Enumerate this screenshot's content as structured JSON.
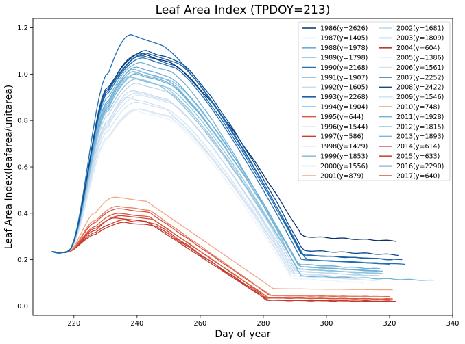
{
  "chart_data": {
    "type": "line",
    "title": "Leaf Area Index (TPDOY=213)",
    "xlabel": "Day of year",
    "ylabel": "Leaf Area Index(leafarea/unitarea)",
    "xlim": [
      207,
      340
    ],
    "ylim": [
      -0.04,
      1.24
    ],
    "xticks": [
      220,
      240,
      260,
      280,
      300,
      320,
      340
    ],
    "yticks": [
      0.0,
      0.2,
      0.4,
      0.6,
      0.8,
      1.0,
      1.2
    ],
    "ytick_labels": [
      "0.0",
      "0.2",
      "0.4",
      "0.6",
      "0.8",
      "1.0",
      "1.2"
    ],
    "legend_position": "top-right",
    "legend_columns": 2,
    "series": [
      {
        "name": "1986(y=2626)",
        "color": "#08306b",
        "peak": 1.09,
        "peak_day": 241,
        "end_day": 322,
        "end_value": 0.28
      },
      {
        "name": "1987(y=1405)",
        "color": "#deebf7",
        "peak": 0.85,
        "peak_day": 240,
        "end_day": 313,
        "end_value": 0.12
      },
      {
        "name": "1988(y=1978)",
        "color": "#6baed6",
        "peak": 1.03,
        "peak_day": 240,
        "end_day": 316,
        "end_value": 0.15
      },
      {
        "name": "1989(y=1798)",
        "color": "#9ecae1",
        "peak": 0.99,
        "peak_day": 238,
        "end_day": 314,
        "end_value": 0.14
      },
      {
        "name": "1990(y=2168)",
        "color": "#2171b5",
        "peak": 1.07,
        "peak_day": 242,
        "end_day": 320,
        "end_value": 0.18
      },
      {
        "name": "1991(y=1907)",
        "color": "#74b3d8",
        "peak": 1.01,
        "peak_day": 239,
        "end_day": 316,
        "end_value": 0.16
      },
      {
        "name": "1992(y=1605)",
        "color": "#c6dbef",
        "peak": 0.93,
        "peak_day": 239,
        "end_day": 314,
        "end_value": 0.13
      },
      {
        "name": "1993(y=2268)",
        "color": "#1c5fa8",
        "peak": 1.09,
        "peak_day": 243,
        "end_day": 324,
        "end_value": 0.2
      },
      {
        "name": "1994(y=1904)",
        "color": "#6aaed6",
        "peak": 1.0,
        "peak_day": 240,
        "end_day": 317,
        "end_value": 0.16
      },
      {
        "name": "1995(y=644)",
        "color": "#d9573e",
        "peak": 0.4,
        "peak_day": 234,
        "end_day": 320,
        "end_value": 0.03
      },
      {
        "name": "1996(y=1544)",
        "color": "#d6e6f4",
        "peak": 0.91,
        "peak_day": 241,
        "end_day": 316,
        "end_value": 0.11
      },
      {
        "name": "1997(y=586)",
        "color": "#cb3a2a",
        "peak": 0.37,
        "peak_day": 236,
        "end_day": 322,
        "end_value": 0.02
      },
      {
        "name": "1998(y=1429)",
        "color": "#dae8f5",
        "peak": 0.85,
        "peak_day": 241,
        "end_day": 315,
        "end_value": 0.11
      },
      {
        "name": "1999(y=1853)",
        "color": "#8dc1dd",
        "peak": 0.99,
        "peak_day": 237,
        "end_day": 318,
        "end_value": 0.14
      },
      {
        "name": "2000(y=1556)",
        "color": "#d0e1f2",
        "peak": 0.9,
        "peak_day": 237,
        "end_day": 315,
        "end_value": 0.12
      },
      {
        "name": "2001(y=879)",
        "color": "#f4a582",
        "peak": 0.47,
        "peak_day": 233,
        "end_day": 321,
        "end_value": 0.07
      },
      {
        "name": "2002(y=1681)",
        "color": "#bad6eb",
        "peak": 0.96,
        "peak_day": 240,
        "end_day": 317,
        "end_value": 0.13
      },
      {
        "name": "2003(y=1809)",
        "color": "#94c4df",
        "peak": 1.01,
        "peak_day": 241,
        "end_day": 318,
        "end_value": 0.15
      },
      {
        "name": "2004(y=604)",
        "color": "#c0392b",
        "peak": 0.38,
        "peak_day": 233,
        "end_day": 322,
        "end_value": 0.02
      },
      {
        "name": "2005(y=1386)",
        "color": "#eaf2fb",
        "peak": 0.84,
        "peak_day": 240,
        "end_day": 312,
        "end_value": 0.1
      },
      {
        "name": "2006(y=1561)",
        "color": "#cfe1f2",
        "peak": 0.92,
        "peak_day": 240,
        "end_day": 315,
        "end_value": 0.12
      },
      {
        "name": "2007(y=2252)",
        "color": "#1f6eb2",
        "peak": 1.17,
        "peak_day": 238,
        "end_day": 325,
        "end_value": 0.18
      },
      {
        "name": "2008(y=2422)",
        "color": "#0d4a8c",
        "peak": 1.1,
        "peak_day": 243,
        "end_day": 323,
        "end_value": 0.22
      },
      {
        "name": "2009(y=1546)",
        "color": "#d4e4f3",
        "peak": 0.88,
        "peak_day": 240,
        "end_day": 314,
        "end_value": 0.12
      },
      {
        "name": "2010(y=748)",
        "color": "#e8836a",
        "peak": 0.43,
        "peak_day": 234,
        "end_day": 320,
        "end_value": 0.04
      },
      {
        "name": "2011(y=1928)",
        "color": "#72b2d7",
        "peak": 1.05,
        "peak_day": 241,
        "end_day": 334,
        "end_value": 0.11
      },
      {
        "name": "2012(y=1815)",
        "color": "#94c4df",
        "peak": 0.98,
        "peak_day": 240,
        "end_day": 317,
        "end_value": 0.14
      },
      {
        "name": "2013(y=1893)",
        "color": "#7bb7da",
        "peak": 1.02,
        "peak_day": 239,
        "end_day": 318,
        "end_value": 0.15
      },
      {
        "name": "2014(y=614)",
        "color": "#c73a2e",
        "peak": 0.36,
        "peak_day": 236,
        "end_day": 321,
        "end_value": 0.03
      },
      {
        "name": "2015(y=633)",
        "color": "#d34a38",
        "peak": 0.39,
        "peak_day": 235,
        "end_day": 320,
        "end_value": 0.03
      },
      {
        "name": "2016(y=2290)",
        "color": "#1a62a8",
        "peak": 1.08,
        "peak_day": 242,
        "end_day": 321,
        "end_value": 0.2
      },
      {
        "name": "2017(y=640)",
        "color": "#d5503c",
        "peak": 0.42,
        "peak_day": 234,
        "end_day": 320,
        "end_value": 0.04
      }
    ]
  }
}
